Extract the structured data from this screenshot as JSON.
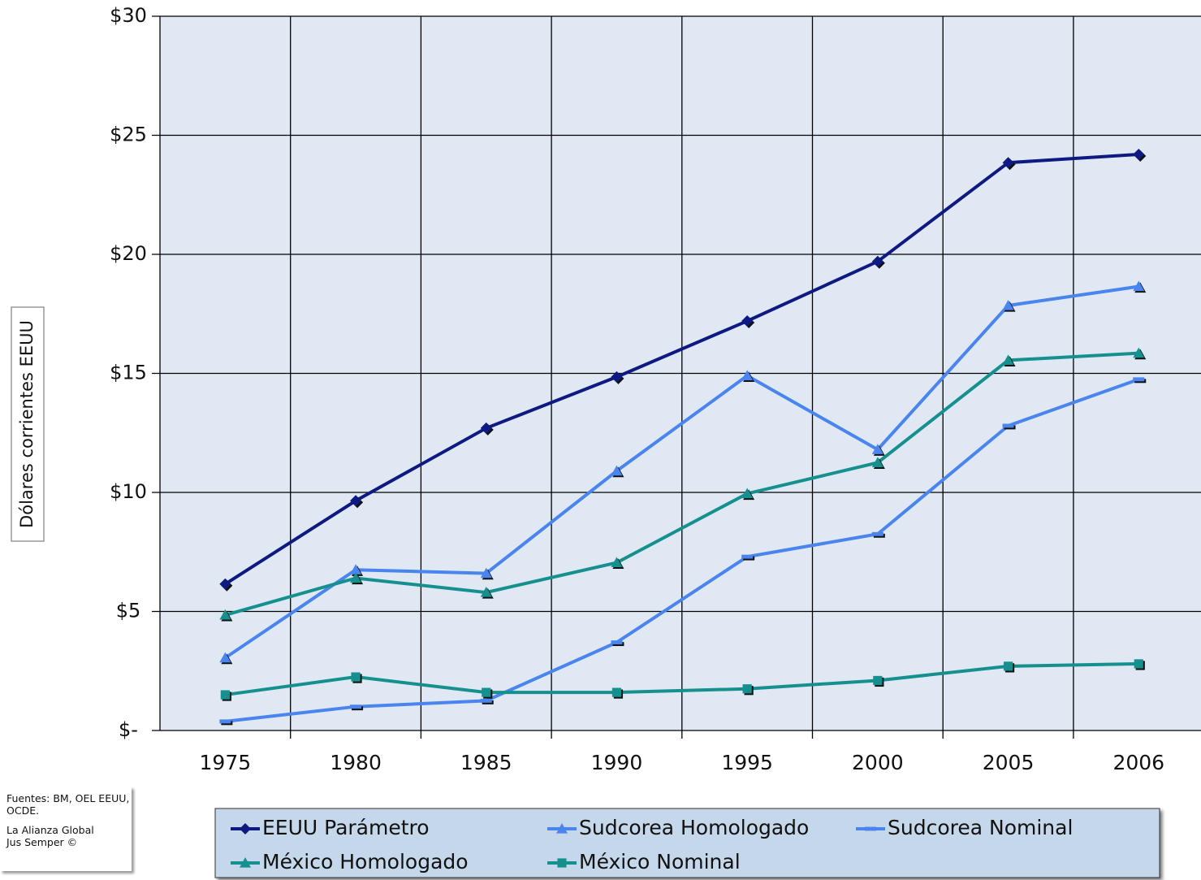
{
  "chart_data": {
    "type": "line",
    "y_label": "Dólares corrientes EEUU",
    "notes": [
      "Fuentes: BM, OEL EEUU, OCDE.",
      "La Alianza Global Jus Semper ©"
    ],
    "categories": [
      "1975",
      "1980",
      "1985",
      "1990",
      "1995",
      "2000",
      "2005",
      "2006"
    ],
    "series": [
      {
        "name": "EEUU Parámetro",
        "color": "#0e1a82",
        "marker": "diamond",
        "values": [
          6.15,
          9.65,
          12.7,
          14.85,
          17.2,
          19.7,
          23.85,
          24.2
        ]
      },
      {
        "name": "Sudcorea Homologado",
        "color": "#4a84ee",
        "marker": "triangle",
        "values": [
          3.05,
          6.75,
          6.6,
          10.9,
          14.9,
          11.8,
          17.85,
          18.65
        ]
      },
      {
        "name": "Sudcorea Nominal",
        "color": "#4a84ee",
        "marker": "dash",
        "values": [
          0.38,
          1.0,
          1.25,
          3.7,
          7.3,
          8.25,
          12.8,
          14.75
        ]
      },
      {
        "name": "México Homologado",
        "color": "#16908f",
        "marker": "triangle",
        "values": [
          4.85,
          6.4,
          5.8,
          7.05,
          9.95,
          11.25,
          15.55,
          15.85
        ]
      },
      {
        "name": "México Nominal",
        "color": "#16908f",
        "marker": "square",
        "values": [
          1.5,
          2.25,
          1.6,
          1.6,
          1.75,
          2.1,
          2.7,
          2.8
        ]
      }
    ],
    "ylim": [
      0,
      30
    ],
    "yticks": [
      {
        "value": 0,
        "label": "$-"
      },
      {
        "value": 5,
        "label": "$5"
      },
      {
        "value": 10,
        "label": "$10"
      },
      {
        "value": 15,
        "label": "$15"
      },
      {
        "value": 20,
        "label": "$20"
      },
      {
        "value": 25,
        "label": "$25"
      },
      {
        "value": 30,
        "label": "$30"
      }
    ],
    "grid": true
  }
}
